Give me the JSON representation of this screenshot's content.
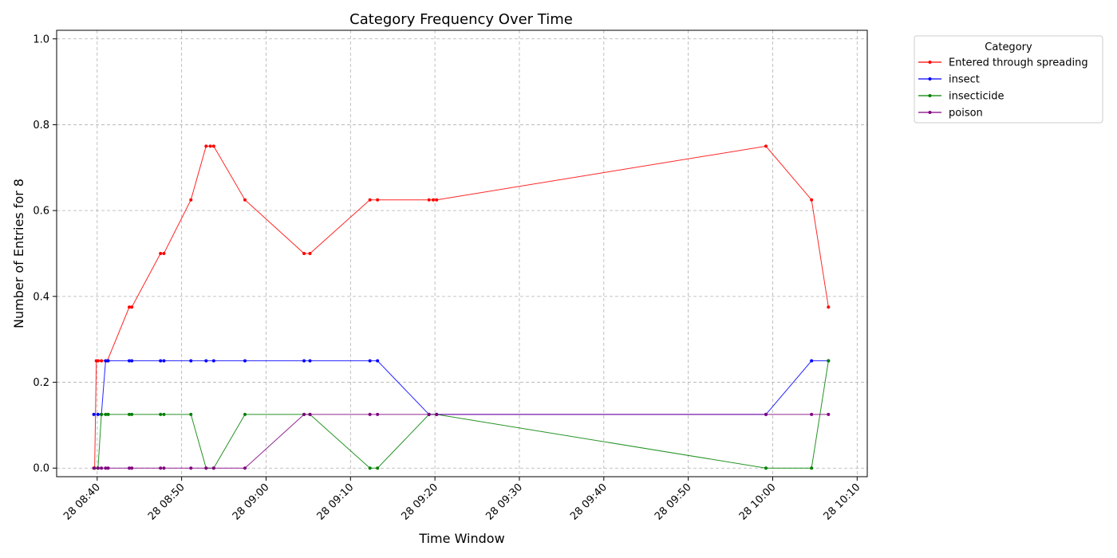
{
  "chart_data": {
    "type": "line",
    "title": "Category Frequency Over Time",
    "xlabel": "Time Window",
    "ylabel": "Number of Entries for 8",
    "x_ticks": [
      "28 08:40",
      "28 08:50",
      "28 09:00",
      "28 09:10",
      "28 09:20",
      "28 09:30",
      "28 09:40",
      "28 09:50",
      "28 10:00",
      "28 10:10"
    ],
    "y_ticks": [
      "0.0",
      "0.2",
      "0.4",
      "0.6",
      "0.8",
      "1.0"
    ],
    "ylim": [
      -0.02,
      1.02
    ],
    "xlim": [
      "08:35.2",
      "10:11.2"
    ],
    "grid": true,
    "legend": {
      "title": "Category",
      "placement": "outside-top-right"
    },
    "series": [
      {
        "name": "Entered through spreading",
        "color": "#ff0000",
        "points": [
          [
            "08:39.7",
            0.0
          ],
          [
            "08:39.9",
            0.25
          ],
          [
            "08:40.1",
            0.25
          ],
          [
            "08:40.5",
            0.25
          ],
          [
            "08:41.2",
            0.25
          ],
          [
            "08:43.8",
            0.375
          ],
          [
            "08:44.1",
            0.375
          ],
          [
            "08:47.5",
            0.5
          ],
          [
            "08:47.9",
            0.5
          ],
          [
            "08:51.1",
            0.625
          ],
          [
            "08:52.9",
            0.75
          ],
          [
            "08:53.4",
            0.75
          ],
          [
            "08:53.8",
            0.75
          ],
          [
            "08:57.5",
            0.625
          ],
          [
            "09:04.5",
            0.5
          ],
          [
            "09:05.2",
            0.5
          ],
          [
            "09:12.3",
            0.625
          ],
          [
            "09:13.2",
            0.625
          ],
          [
            "09:19.3",
            0.625
          ],
          [
            "09:19.8",
            0.625
          ],
          [
            "09:20.2",
            0.625
          ],
          [
            "09:59.2",
            0.75
          ],
          [
            "10:04.6",
            0.625
          ],
          [
            "10:06.6",
            0.375
          ]
        ]
      },
      {
        "name": "insect",
        "color": "#0000ff",
        "points": [
          [
            "08:39.6",
            0.125
          ],
          [
            "08:40.1",
            0.125
          ],
          [
            "08:40.5",
            0.125
          ],
          [
            "08:41.0",
            0.25
          ],
          [
            "08:41.3",
            0.25
          ],
          [
            "08:43.8",
            0.25
          ],
          [
            "08:44.1",
            0.25
          ],
          [
            "08:47.5",
            0.25
          ],
          [
            "08:47.9",
            0.25
          ],
          [
            "08:51.1",
            0.25
          ],
          [
            "08:52.9",
            0.25
          ],
          [
            "08:53.8",
            0.25
          ],
          [
            "08:57.5",
            0.25
          ],
          [
            "09:04.5",
            0.25
          ],
          [
            "09:05.2",
            0.25
          ],
          [
            "09:12.3",
            0.25
          ],
          [
            "09:13.2",
            0.25
          ],
          [
            "09:19.3",
            0.125
          ],
          [
            "09:20.2",
            0.125
          ],
          [
            "09:59.2",
            0.125
          ],
          [
            "10:04.6",
            0.25
          ],
          [
            "10:06.6",
            0.25
          ]
        ]
      },
      {
        "name": "insecticide",
        "color": "#008000",
        "points": [
          [
            "08:39.7",
            0.0
          ],
          [
            "08:40.1",
            0.0
          ],
          [
            "08:40.5",
            0.125
          ],
          [
            "08:41.0",
            0.125
          ],
          [
            "08:41.3",
            0.125
          ],
          [
            "08:43.8",
            0.125
          ],
          [
            "08:44.1",
            0.125
          ],
          [
            "08:47.5",
            0.125
          ],
          [
            "08:47.9",
            0.125
          ],
          [
            "08:51.1",
            0.125
          ],
          [
            "08:52.9",
            0.0
          ],
          [
            "08:53.8",
            0.0
          ],
          [
            "08:57.5",
            0.125
          ],
          [
            "09:04.5",
            0.125
          ],
          [
            "09:05.2",
            0.125
          ],
          [
            "09:12.3",
            0.0
          ],
          [
            "09:13.2",
            0.0
          ],
          [
            "09:19.3",
            0.125
          ],
          [
            "09:20.2",
            0.125
          ],
          [
            "09:59.2",
            0.0
          ],
          [
            "10:04.6",
            0.0
          ],
          [
            "10:06.6",
            0.25
          ]
        ]
      },
      {
        "name": "poison",
        "color": "#800080",
        "points": [
          [
            "08:39.6",
            0.0
          ],
          [
            "08:40.1",
            0.0
          ],
          [
            "08:40.5",
            0.0
          ],
          [
            "08:41.0",
            0.0
          ],
          [
            "08:41.3",
            0.0
          ],
          [
            "08:43.8",
            0.0
          ],
          [
            "08:44.1",
            0.0
          ],
          [
            "08:47.5",
            0.0
          ],
          [
            "08:47.9",
            0.0
          ],
          [
            "08:51.1",
            0.0
          ],
          [
            "08:52.9",
            0.0
          ],
          [
            "08:53.8",
            0.0
          ],
          [
            "08:57.5",
            0.0
          ],
          [
            "09:04.5",
            0.125
          ],
          [
            "09:05.2",
            0.125
          ],
          [
            "09:12.3",
            0.125
          ],
          [
            "09:13.2",
            0.125
          ],
          [
            "09:19.3",
            0.125
          ],
          [
            "09:20.2",
            0.125
          ],
          [
            "09:59.2",
            0.125
          ],
          [
            "10:04.6",
            0.125
          ],
          [
            "10:06.6",
            0.125
          ]
        ]
      }
    ]
  }
}
